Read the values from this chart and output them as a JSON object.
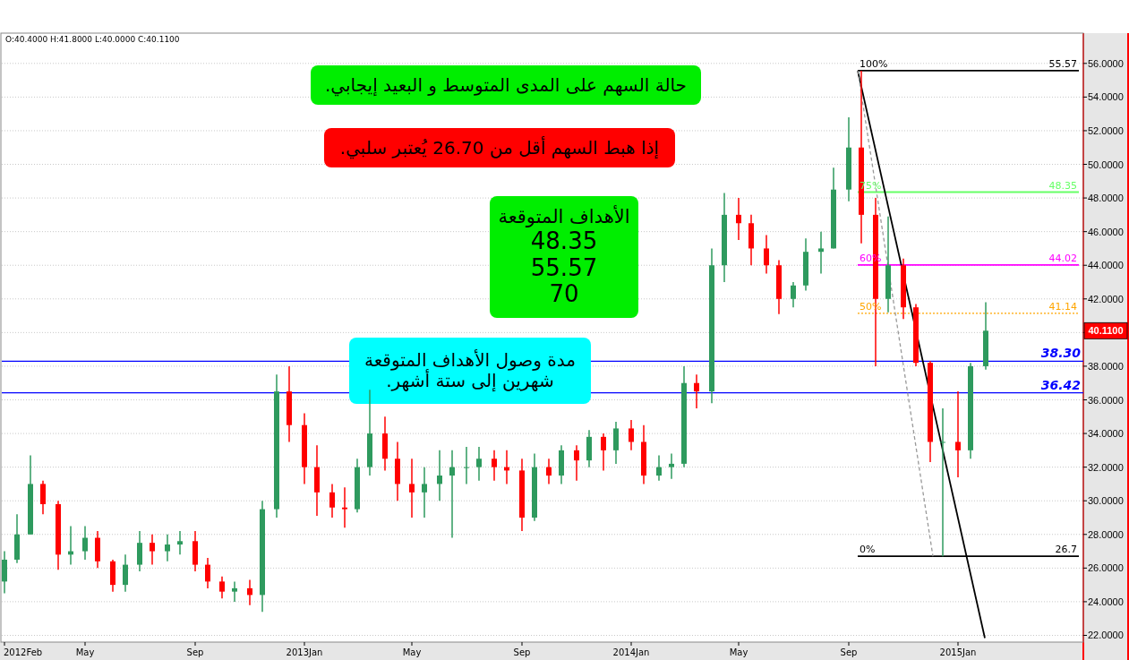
{
  "chart_data": {
    "type": "candlestick",
    "x": [
      "2012-02-01",
      "2012-02-15",
      "2012-03-01",
      "2012-03-15",
      "2012-04-01",
      "2012-04-15",
      "2012-05-01",
      "2012-05-15",
      "2012-06-01",
      "2012-06-15",
      "2012-07-01",
      "2012-07-15",
      "2012-08-01",
      "2012-08-15",
      "2012-09-01",
      "2012-09-15",
      "2012-10-01",
      "2012-10-15",
      "2012-11-01",
      "2012-11-15",
      "2012-12-01",
      "2012-12-15",
      "2013-01-01",
      "2013-01-15",
      "2013-02-01",
      "2013-02-15",
      "2013-03-01",
      "2013-03-15",
      "2013-04-01",
      "2013-04-15",
      "2013-05-01",
      "2013-05-15",
      "2013-06-01",
      "2013-06-15",
      "2013-07-01",
      "2013-07-15",
      "2013-08-01",
      "2013-08-15",
      "2013-09-01",
      "2013-09-15",
      "2013-10-01",
      "2013-10-15",
      "2013-11-01",
      "2013-11-15",
      "2013-12-01",
      "2013-12-15",
      "2014-01-01",
      "2014-01-15",
      "2014-02-01",
      "2014-02-15",
      "2014-03-01",
      "2014-03-15",
      "2014-04-01",
      "2014-04-15",
      "2014-05-01",
      "2014-05-15",
      "2014-06-01",
      "2014-06-15",
      "2014-07-01",
      "2014-07-15",
      "2014-08-01",
      "2014-08-15",
      "2014-09-01",
      "2014-09-15",
      "2014-10-01",
      "2014-10-15",
      "2014-11-01",
      "2014-11-15",
      "2014-12-01",
      "2014-12-15",
      "2015-01-01",
      "2015-01-15",
      "2015-02-01"
    ],
    "ohlc": [
      [
        25.2,
        27,
        24.5,
        26.5
      ],
      [
        26.5,
        29.2,
        26.3,
        28
      ],
      [
        28,
        32.7,
        28,
        31
      ],
      [
        31,
        31.2,
        29.2,
        29.8
      ],
      [
        29.8,
        30,
        25.9,
        26.8
      ],
      [
        26.8,
        28.5,
        26.2,
        27
      ],
      [
        27,
        28.5,
        26.5,
        27.8
      ],
      [
        27.8,
        28.2,
        26,
        26.4
      ],
      [
        26.4,
        26.5,
        24.6,
        25
      ],
      [
        25,
        26.8,
        24.6,
        26.2
      ],
      [
        26.2,
        28.2,
        25.8,
        27.5
      ],
      [
        27.5,
        28,
        26.2,
        27
      ],
      [
        27,
        28,
        26.4,
        27.4
      ],
      [
        27.4,
        28.2,
        26.8,
        27.6
      ],
      [
        27.6,
        28.2,
        25.8,
        26.2
      ],
      [
        26.2,
        26.6,
        24.8,
        25.2
      ],
      [
        25.2,
        25.5,
        24.2,
        24.6
      ],
      [
        24.6,
        25.2,
        24,
        24.8
      ],
      [
        24.8,
        25.3,
        23.8,
        24.4
      ],
      [
        24.4,
        30,
        23.4,
        29.5
      ],
      [
        29.5,
        37.5,
        29,
        36.5
      ],
      [
        36.5,
        38,
        33.5,
        34.5
      ],
      [
        34.5,
        35.2,
        31,
        32
      ],
      [
        32,
        33.3,
        29.1,
        30.5
      ],
      [
        30.5,
        31,
        29,
        29.6
      ],
      [
        29.6,
        30.8,
        28.4,
        29.5
      ],
      [
        29.5,
        32.5,
        29.3,
        32
      ],
      [
        32,
        36.6,
        31.5,
        34
      ],
      [
        34,
        35,
        31.8,
        32.5
      ],
      [
        32.5,
        33.5,
        30,
        31
      ],
      [
        31,
        32.5,
        29,
        30.5
      ],
      [
        30.5,
        32,
        29,
        31
      ],
      [
        31,
        33,
        30,
        31.5
      ],
      [
        31.5,
        33,
        27.8,
        32
      ],
      [
        32,
        33.2,
        31,
        32
      ],
      [
        32,
        33.2,
        31.2,
        32.5
      ],
      [
        32.5,
        33,
        31.2,
        32
      ],
      [
        32,
        33,
        31,
        31.8
      ],
      [
        31.8,
        32.5,
        28.2,
        29
      ],
      [
        29,
        32.8,
        28.8,
        32
      ],
      [
        32,
        32.5,
        31,
        31.5
      ],
      [
        31.5,
        33.3,
        31,
        33
      ],
      [
        33,
        33.3,
        31.2,
        32.4
      ],
      [
        32.4,
        34.2,
        32,
        33.8
      ],
      [
        33.8,
        34,
        31.8,
        33
      ],
      [
        33,
        34.7,
        32.2,
        34.3
      ],
      [
        34.3,
        34.8,
        33,
        33.5
      ],
      [
        33.5,
        34.5,
        31,
        31.5
      ],
      [
        31.5,
        32.7,
        31.2,
        32
      ],
      [
        32,
        32.8,
        31.3,
        32.2
      ],
      [
        32.2,
        38,
        32,
        37
      ],
      [
        37,
        37.5,
        35.5,
        36.5
      ],
      [
        36.5,
        45,
        35.8,
        44
      ],
      [
        44,
        48.3,
        43,
        47
      ],
      [
        47,
        48,
        45.5,
        46.5
      ],
      [
        46.5,
        47,
        44,
        45
      ],
      [
        45,
        45.8,
        43.5,
        44
      ],
      [
        44,
        44.3,
        41.1,
        42
      ],
      [
        42,
        43,
        41.5,
        42.8
      ],
      [
        42.8,
        45.6,
        42.5,
        44.8
      ],
      [
        44.8,
        46,
        43.5,
        45
      ],
      [
        45,
        49.8,
        45,
        48.5
      ],
      [
        48.5,
        52.8,
        47.8,
        51
      ],
      [
        51,
        55.57,
        45.3,
        47
      ],
      [
        47,
        48,
        38,
        42
      ],
      [
        42,
        46.9,
        41.2,
        44
      ],
      [
        44,
        44.4,
        40.8,
        41.5
      ],
      [
        41.5,
        41.7,
        38,
        38.2
      ],
      [
        38.2,
        38.3,
        32.3,
        33.5
      ],
      [
        33.5,
        35.5,
        26.7,
        33.5
      ],
      [
        33.5,
        36.5,
        31.4,
        33
      ],
      [
        33,
        38.2,
        32.5,
        38
      ],
      [
        38,
        41.8,
        37.8,
        40.11
      ]
    ],
    "series": [
      {
        "type": "line",
        "color": "#000000",
        "x": [
          "2014-09-11",
          "2015-05-16"
        ],
        "values": [
          55.57,
          55.57
        ]
      },
      {
        "type": "line",
        "color": "#66ff66",
        "x": [
          "2014-09-11",
          "2015-05-16"
        ],
        "values": [
          48.35,
          48.35
        ]
      },
      {
        "type": "line",
        "color": "#ff00ff",
        "x": [
          "2014-09-11",
          "2015-05-16"
        ],
        "values": [
          44.02,
          44.02
        ]
      },
      {
        "type": "line",
        "color": "#ffa500",
        "line_style": "dotted",
        "x": [
          "2014-09-11",
          "2015-05-16"
        ],
        "values": [
          41.14,
          41.14
        ]
      },
      {
        "type": "line",
        "color": "#000000",
        "x": [
          "2014-09-11",
          "2015-05-16"
        ],
        "values": [
          26.7,
          26.7
        ]
      },
      {
        "type": "line",
        "color": "#000000",
        "x": [
          "2014-09-11",
          "2015-01-31"
        ],
        "values": [
          55.57,
          21.84
        ]
      },
      {
        "type": "line",
        "color": "#999999",
        "line_style": "dashed",
        "x": [
          "2014-09-11",
          "2014-12-04"
        ],
        "values": [
          55.57,
          26.7
        ]
      }
    ],
    "ref_lines": [
      {
        "axis": "y",
        "value": 38.3,
        "label": "38.30",
        "color": "#0000ff"
      },
      {
        "axis": "y",
        "value": 36.42,
        "label": "36.42",
        "color": "#0000ff"
      }
    ],
    "annotations": [
      "O:40.4000  H:41.8000  L:40.0000  C:40.1100",
      "حالة السهم على المدى المتوسط و البعيد إيجابي.",
      "إذا هبط السهم أقل من 26.70 يُعتبر سلبي.",
      "الأهداف المتوقعة\n48.35\n55.57\n70",
      "مدة وصول الأهداف المتوقعة\nشهرين إلى ستة أشهر.",
      {
        "text": "100%",
        "x": "2014-09-11",
        "y": 55.57
      },
      {
        "text": "55.57",
        "x": "2015-05-16",
        "y": 55.57
      },
      {
        "text": "75%",
        "x": "2014-09-11",
        "y": 48.35
      },
      {
        "text": "48.35",
        "x": "2015-05-16",
        "y": 48.35
      },
      {
        "text": "60%",
        "x": "2014-09-11",
        "y": 44.02
      },
      {
        "text": "44.02",
        "x": "2015-05-16",
        "y": 44.02
      },
      {
        "text": "50%",
        "x": "2014-09-11",
        "y": 41.14
      },
      {
        "text": "41.14",
        "x": "2015-05-16",
        "y": 41.14
      },
      {
        "text": "0%",
        "x": "2014-09-11",
        "y": 26.7
      },
      {
        "text": "26.7",
        "x": "2015-05-16",
        "y": 26.7
      },
      "40.1100"
    ],
    "xlim": [
      "2012-01-29",
      "2015-05-21"
    ],
    "xticks": [
      {
        "value": "2012-02-01",
        "label": "2012Feb"
      },
      {
        "value": "2012-05-01",
        "label": "May"
      },
      {
        "value": "2012-09-01",
        "label": "Sep"
      },
      {
        "value": "2013-01-01",
        "label": "2013Jan"
      },
      {
        "value": "2013-05-01",
        "label": "May"
      },
      {
        "value": "2013-09-01",
        "label": "Sep"
      },
      {
        "value": "2014-01-01",
        "label": "2014Jan"
      },
      {
        "value": "2014-05-01",
        "label": "May"
      },
      {
        "value": "2014-09-01",
        "label": "Sep"
      },
      {
        "value": "2015-01-01",
        "label": "2015Jan"
      }
    ],
    "ylim": [
      21.6,
      57.8
    ],
    "yticks": [
      {
        "value": 22,
        "label": "22.0000"
      },
      {
        "value": 24,
        "label": "24.0000"
      },
      {
        "value": 26,
        "label": "26.0000"
      },
      {
        "value": 28,
        "label": "28.0000"
      },
      {
        "value": 30,
        "label": "30.0000"
      },
      {
        "value": 32,
        "label": "32.0000"
      },
      {
        "value": 34,
        "label": "34.0000"
      },
      {
        "value": 36,
        "label": "36.0000"
      },
      {
        "value": 38,
        "label": "38.0000"
      },
      {
        "value": 40,
        "label": null
      },
      {
        "value": 42,
        "label": "42.0000"
      },
      {
        "value": 44,
        "label": "44.0000"
      },
      {
        "value": 46,
        "label": "46.0000"
      },
      {
        "value": 48,
        "label": "48.0000"
      },
      {
        "value": 50,
        "label": "50.0000"
      },
      {
        "value": 52,
        "label": "52.0000"
      },
      {
        "value": 54,
        "label": "54.0000"
      },
      {
        "value": 56,
        "label": "56.0000"
      }
    ],
    "grid": "y"
  }
}
